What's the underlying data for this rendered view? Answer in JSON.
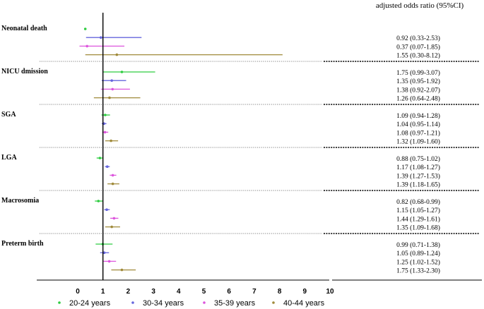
{
  "chart_data": {
    "type": "forest",
    "header_right": "adjusted odds ratio (95%CI)",
    "x_ticks": [
      0,
      1,
      2,
      3,
      4,
      5,
      6,
      7,
      8,
      9,
      10
    ],
    "xlim": [
      0,
      10
    ],
    "reference_line": 1,
    "legend_position": "bottom",
    "series": [
      {
        "name": "20-24 years",
        "color": "#2ecc40"
      },
      {
        "name": "30-34 years",
        "color": "#6666dd"
      },
      {
        "name": "35-39 years",
        "color": "#dd55dd"
      },
      {
        "name": "40-44 years",
        "color": "#a08a3a"
      }
    ],
    "groups": [
      {
        "label": "Neonatal death",
        "rows": [
          {
            "series": 0,
            "or": 0.3,
            "lo": null,
            "hi": null,
            "text": ""
          },
          {
            "series": 1,
            "or": 0.92,
            "lo": 0.33,
            "hi": 2.53,
            "text": "0.92 (0.33-2.53)"
          },
          {
            "series": 2,
            "or": 0.37,
            "lo": 0.07,
            "hi": 1.85,
            "text": "0.37 (0.07-1.85)"
          },
          {
            "series": 3,
            "or": 1.55,
            "lo": 0.3,
            "hi": 8.12,
            "text": "1.55 (0.30-8.12)"
          }
        ]
      },
      {
        "label": "NICU dmission",
        "rows": [
          {
            "series": 0,
            "or": 1.75,
            "lo": 0.99,
            "hi": 3.07,
            "text": "1.75 (0.99-3.07)"
          },
          {
            "series": 1,
            "or": 1.35,
            "lo": 0.95,
            "hi": 1.92,
            "text": "1.35 (0.95-1.92)"
          },
          {
            "series": 2,
            "or": 1.38,
            "lo": 0.92,
            "hi": 2.07,
            "text": "1.38 (0.92-2.07)"
          },
          {
            "series": 3,
            "or": 1.26,
            "lo": 0.64,
            "hi": 2.48,
            "text": "1.26 (0.64-2.48)"
          }
        ]
      },
      {
        "label": "SGA",
        "rows": [
          {
            "series": 0,
            "or": 1.09,
            "lo": 0.94,
            "hi": 1.28,
            "text": "1.09 (0.94-1.28)"
          },
          {
            "series": 1,
            "or": 1.04,
            "lo": 0.95,
            "hi": 1.14,
            "text": "1.04 (0.95-1.14)"
          },
          {
            "series": 2,
            "or": 1.08,
            "lo": 0.97,
            "hi": 1.21,
            "text": "1.08 (0.97-1.21)"
          },
          {
            "series": 3,
            "or": 1.32,
            "lo": 1.09,
            "hi": 1.6,
            "text": "1.32 (1.09-1.60)"
          }
        ]
      },
      {
        "label": "LGA",
        "rows": [
          {
            "series": 0,
            "or": 0.88,
            "lo": 0.75,
            "hi": 1.02,
            "text": "0.88 (0.75-1.02)"
          },
          {
            "series": 1,
            "or": 1.17,
            "lo": 1.08,
            "hi": 1.27,
            "text": "1.17 (1.08-1.27)"
          },
          {
            "series": 2,
            "or": 1.39,
            "lo": 1.27,
            "hi": 1.53,
            "text": "1.39 (1.27-1.53)"
          },
          {
            "series": 3,
            "or": 1.39,
            "lo": 1.18,
            "hi": 1.65,
            "text": "1.39 (1.18-1.65)"
          }
        ]
      },
      {
        "label": "Macrosomia",
        "rows": [
          {
            "series": 0,
            "or": 0.82,
            "lo": 0.68,
            "hi": 0.99,
            "text": "0.82 (0.68-0.99)"
          },
          {
            "series": 1,
            "or": 1.15,
            "lo": 1.05,
            "hi": 1.27,
            "text": "1.15 (1.05-1.27)"
          },
          {
            "series": 2,
            "or": 1.44,
            "lo": 1.29,
            "hi": 1.61,
            "text": "1.44 (1.29-1.61)"
          },
          {
            "series": 3,
            "or": 1.35,
            "lo": 1.09,
            "hi": 1.68,
            "text": "1.35 (1.09-1.68)"
          }
        ]
      },
      {
        "label": "Preterm birth",
        "rows": [
          {
            "series": 0,
            "or": 0.99,
            "lo": 0.71,
            "hi": 1.38,
            "text": "0.99 (0.71-1.38)"
          },
          {
            "series": 1,
            "or": 1.05,
            "lo": 0.89,
            "hi": 1.24,
            "text": "1.05 (0.89-1.24)"
          },
          {
            "series": 2,
            "or": 1.25,
            "lo": 1.02,
            "hi": 1.52,
            "text": "1.25 (1.02-1.52)"
          },
          {
            "series": 3,
            "or": 1.75,
            "lo": 1.33,
            "hi": 2.3,
            "text": "1.75 (1.33-2.30)"
          }
        ]
      }
    ]
  }
}
